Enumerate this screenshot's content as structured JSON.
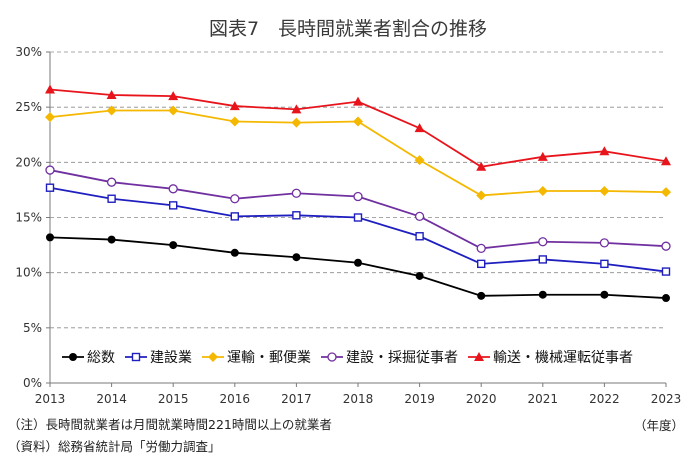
{
  "chart_data": {
    "type": "line",
    "title": "図表7　長時間就業者割合の推移",
    "x": [
      "2013",
      "2014",
      "2015",
      "2016",
      "2017",
      "2018",
      "2019",
      "2020",
      "2021",
      "2022",
      "2023"
    ],
    "xunit": "（年度）",
    "ylim": [
      0,
      30
    ],
    "yticks": [
      "0%",
      "5%",
      "10%",
      "15%",
      "20%",
      "25%",
      "30%"
    ],
    "grid": "horizontal dashed",
    "legend_position": "inside-bottom",
    "series": [
      {
        "name": "総数",
        "color": "#000000",
        "marker": "circle-filled",
        "values": [
          13.2,
          13.0,
          12.5,
          11.8,
          11.4,
          10.9,
          9.7,
          7.9,
          8.0,
          8.0,
          7.7
        ]
      },
      {
        "name": "建設業",
        "color": "#1f1fbf",
        "marker": "square-open",
        "values": [
          17.7,
          16.7,
          16.1,
          15.1,
          15.2,
          15.0,
          13.3,
          10.8,
          11.2,
          10.8,
          10.1
        ]
      },
      {
        "name": "運輸・郵便業",
        "color": "#f5b800",
        "marker": "diamond-filled",
        "values": [
          24.1,
          24.7,
          24.7,
          23.7,
          23.6,
          23.7,
          20.2,
          17.0,
          17.4,
          17.4,
          17.3
        ]
      },
      {
        "name": "建設・採掘従事者",
        "color": "#7030a0",
        "marker": "circle-open",
        "values": [
          19.3,
          18.2,
          17.6,
          16.7,
          17.2,
          16.9,
          15.1,
          12.2,
          12.8,
          12.7,
          12.4
        ]
      },
      {
        "name": "輸送・機械運転従事者",
        "color": "#e8141b",
        "marker": "triangle-filled",
        "values": [
          26.6,
          26.1,
          26.0,
          25.1,
          24.8,
          25.5,
          23.1,
          19.6,
          20.5,
          21.0,
          20.1
        ]
      }
    ]
  },
  "notes": {
    "note1": "（注）長時間就業者は月間就業時間221時間以上の就業者",
    "note2": "（資料）総務省統計局「労働力調査」"
  }
}
